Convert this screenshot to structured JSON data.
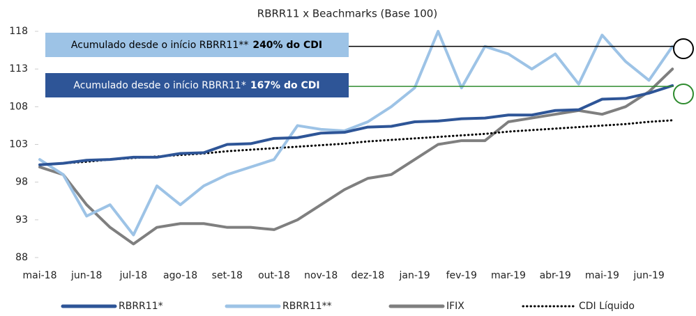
{
  "chart_data": {
    "type": "line",
    "title": "RBRR11 x Beachmarks (Base 100)",
    "categories": [
      "mai-18",
      null,
      "jun-18",
      null,
      "jul-18",
      null,
      "ago-18",
      null,
      "set-18",
      null,
      "out-18",
      null,
      "nov-18",
      null,
      "dez-18",
      null,
      "jan-19",
      null,
      "fev-19",
      null,
      "mar-19",
      null,
      "abr-19",
      null,
      "mai-19",
      null,
      "jun-19",
      null
    ],
    "series": [
      {
        "name": "RBRR11*",
        "color": "#2e5597",
        "style": "solid",
        "values": [
          100.3,
          100.5,
          100.9,
          101,
          101.3,
          101.3,
          101.8,
          101.9,
          103,
          103.1,
          103.8,
          103.9,
          104.5,
          104.6,
          105.3,
          105.4,
          106,
          106.1,
          106.4,
          106.5,
          106.9,
          106.9,
          107.5,
          107.6,
          109,
          109.1,
          109.8,
          110.8
        ]
      },
      {
        "name": "RBRR11**",
        "color": "#9dc3e6",
        "style": "solid",
        "values": [
          101,
          99,
          93.5,
          95,
          91,
          97.5,
          95,
          97.5,
          99,
          100,
          101,
          105.5,
          105,
          104.8,
          106,
          108,
          110.5,
          118,
          110.5,
          116,
          115,
          113,
          115,
          111,
          117.5,
          114,
          111.5,
          116
        ]
      },
      {
        "name": "IFIX",
        "color": "#7f7f7f",
        "style": "solid",
        "values": [
          100,
          99,
          95,
          92,
          89.8,
          92,
          92.5,
          92.5,
          92,
          92,
          91.7,
          93,
          95,
          97,
          98.5,
          99,
          101,
          103,
          103.5,
          103.5,
          106,
          106.5,
          107,
          107.5,
          107,
          108,
          110,
          113
        ]
      },
      {
        "name": "CDI Líquido",
        "color": "#000000",
        "style": "dotted",
        "values": [
          100.3,
          100.5,
          100.7,
          101,
          101.2,
          101.4,
          101.6,
          101.8,
          102.1,
          102.3,
          102.5,
          102.7,
          102.9,
          103.1,
          103.4,
          103.6,
          103.8,
          104,
          104.2,
          104.4,
          104.7,
          104.9,
          105.1,
          105.3,
          105.5,
          105.7,
          106,
          106.2
        ]
      }
    ],
    "ylim": [
      88,
      118
    ],
    "yticks": [
      88,
      93,
      98,
      103,
      108,
      113,
      118
    ],
    "legend": "bottom",
    "annotations": [
      {
        "text": "Acumulado desde o início RBRR11**",
        "bold": "240% do CDI",
        "color": "#9dc3e6",
        "text_color": "#000000",
        "line_color": "#000000"
      },
      {
        "text": "Acumulado desde o início RBRR11*",
        "bold": "167% do CDI",
        "color": "#2e5597",
        "text_color": "#ffffff",
        "line_color": "#2e8b2e"
      }
    ]
  }
}
